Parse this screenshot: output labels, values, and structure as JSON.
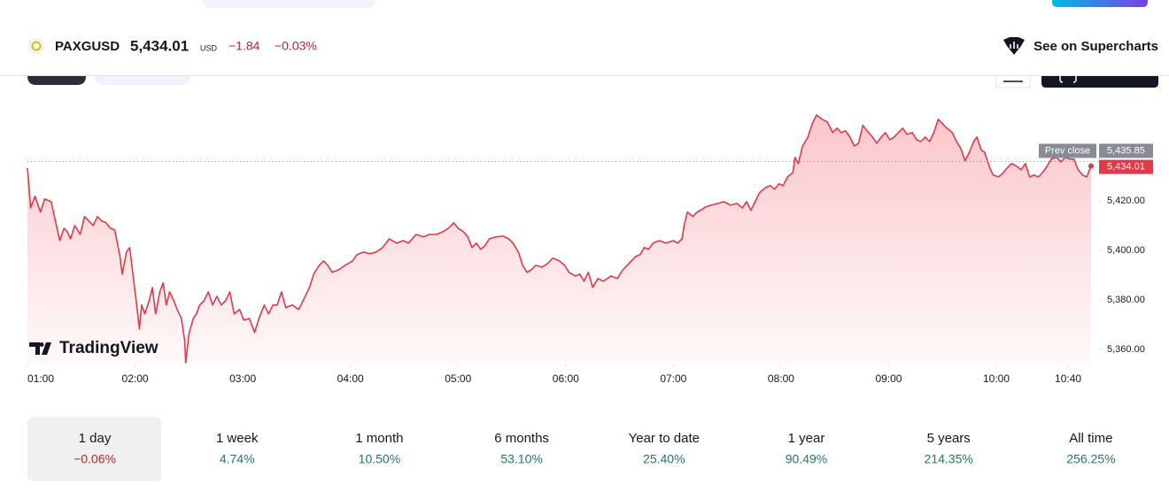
{
  "header": {
    "symbol": "PAXGUSD",
    "price": "5,434.01",
    "currency": "USD",
    "change": "−1.84",
    "change_pct": "−0.03%",
    "link": "See on Supercharts"
  },
  "watermark": "TradingView",
  "chart_data": {
    "type": "line",
    "x": [
      1.0,
      1.03,
      1.07,
      1.12,
      1.16,
      1.22,
      1.26,
      1.3,
      1.34,
      1.37,
      1.4,
      1.44,
      1.49,
      1.53,
      1.57,
      1.61,
      1.65,
      1.69,
      1.73,
      1.77,
      1.81,
      1.86,
      1.88,
      1.92,
      1.95,
      1.98,
      2.01,
      2.04,
      2.06,
      2.09,
      2.13,
      2.16,
      2.19,
      2.23,
      2.26,
      2.29,
      2.32,
      2.36,
      2.39,
      2.43,
      2.46,
      2.47,
      2.5,
      2.54,
      2.57,
      2.6,
      2.64,
      2.68,
      2.72,
      2.76,
      2.8,
      2.84,
      2.88,
      2.92,
      2.97,
      3.01,
      3.06,
      3.11,
      3.15,
      3.2,
      3.24,
      3.28,
      3.32,
      3.36,
      3.4,
      3.46,
      3.52,
      3.58,
      3.62,
      3.66,
      3.71,
      3.75,
      3.79,
      3.83,
      3.89,
      3.95,
      4.02,
      4.06,
      4.12,
      4.18,
      4.24,
      4.3,
      4.36,
      4.43,
      4.49,
      4.54,
      4.61,
      4.68,
      4.73,
      4.8,
      4.86,
      4.91,
      4.96,
      5.0,
      5.05,
      5.09,
      5.13,
      5.17,
      5.21,
      5.25,
      5.29,
      5.35,
      5.42,
      5.47,
      5.51,
      5.56,
      5.6,
      5.64,
      5.68,
      5.72,
      5.78,
      5.83,
      5.88,
      5.94,
      5.99,
      6.03,
      6.09,
      6.13,
      6.17,
      6.21,
      6.25,
      6.3,
      6.35,
      6.42,
      6.48,
      6.53,
      6.57,
      6.61,
      6.65,
      6.69,
      6.73,
      6.77,
      6.81,
      6.87,
      6.93,
      7.0,
      7.04,
      7.08,
      7.1,
      7.13,
      7.18,
      7.22,
      7.26,
      7.3,
      7.35,
      7.41,
      7.47,
      7.53,
      7.59,
      7.64,
      7.68,
      7.72,
      7.76,
      7.8,
      7.86,
      7.9,
      7.94,
      7.98,
      8.02,
      8.06,
      8.11,
      8.13,
      8.16,
      8.2,
      8.25,
      8.29,
      8.33,
      8.38,
      8.43,
      8.48,
      8.52,
      8.56,
      8.6,
      8.64,
      8.68,
      8.72,
      8.76,
      8.8,
      8.85,
      8.89,
      8.93,
      8.97,
      9.01,
      9.05,
      9.09,
      9.13,
      9.17,
      9.22,
      9.26,
      9.3,
      9.34,
      9.38,
      9.42,
      9.46,
      9.5,
      9.54,
      9.59,
      9.63,
      9.67,
      9.71,
      9.75,
      9.79,
      9.82,
      9.86,
      9.89,
      9.94,
      9.97,
      10.02,
      10.06,
      10.1,
      10.14,
      10.19,
      10.23,
      10.27,
      10.31,
      10.35,
      10.39,
      10.43,
      10.47,
      10.51,
      10.56,
      10.6,
      10.64,
      10.68,
      10.72,
      10.76,
      10.8,
      10.84,
      10.88
    ],
    "series": [
      {
        "name": "PAXGUSD",
        "color": "#e03a48",
        "values": [
          5433.2,
          5417.1,
          5421.8,
          5415.4,
          5420.7,
          5419.6,
          5411.8,
          5403.9,
          5408.9,
          5407.5,
          5404.6,
          5410,
          5406.4,
          5413.6,
          5411.8,
          5410,
          5413.6,
          5411.8,
          5411.1,
          5408.9,
          5408.2,
          5397.5,
          5390.4,
          5399.3,
          5401.1,
          5390.4,
          5379.6,
          5368.2,
          5377.9,
          5374.3,
          5379.6,
          5385,
          5374.3,
          5383.2,
          5386.8,
          5377.9,
          5383.2,
          5379.6,
          5376.1,
          5372.5,
          5363.6,
          5354.6,
          5366.1,
          5372.5,
          5374.3,
          5377.9,
          5379.6,
          5383.2,
          5377.9,
          5381.4,
          5377.9,
          5379.6,
          5383.2,
          5374.3,
          5376.1,
          5371.8,
          5372.5,
          5366.8,
          5372.5,
          5377.9,
          5374.3,
          5377.9,
          5377.9,
          5383.2,
          5376.8,
          5377.9,
          5376.1,
          5381.4,
          5385,
          5390.4,
          5393.9,
          5395.7,
          5393.9,
          5391.1,
          5392.1,
          5393.9,
          5395.7,
          5398.2,
          5399.3,
          5398.6,
          5399.3,
          5401.1,
          5404.6,
          5402.9,
          5403.9,
          5402.9,
          5406.4,
          5405.4,
          5406.4,
          5406.4,
          5407.5,
          5408.9,
          5411.1,
          5408.9,
          5407.5,
          5405.4,
          5401.1,
          5402.9,
          5400.4,
          5401.8,
          5404.6,
          5405.4,
          5405.7,
          5404.6,
          5402.9,
          5399.3,
          5393.9,
          5391.1,
          5392.1,
          5393.9,
          5393.2,
          5394.6,
          5396.8,
          5395.7,
          5393.9,
          5391.1,
          5389.6,
          5390.4,
          5387.5,
          5391.1,
          5385,
          5388.6,
          5387.5,
          5389.6,
          5388.6,
          5392.1,
          5393.9,
          5395.7,
          5397.5,
          5398.2,
          5401.1,
          5400.4,
          5402.9,
          5403.9,
          5402.9,
          5403.9,
          5402.9,
          5404.6,
          5410,
          5415.4,
          5413.6,
          5415.4,
          5416.4,
          5417.5,
          5418.2,
          5418.9,
          5419.6,
          5418.2,
          5418.9,
          5417.1,
          5419.6,
          5416.1,
          5419.6,
          5423.2,
          5425.4,
          5426.1,
          5424.6,
          5426.8,
          5426.1,
          5429.6,
          5431.4,
          5437.5,
          5435,
          5442.1,
          5445.7,
          5451.1,
          5454.6,
          5452.9,
          5451.8,
          5447.5,
          5449.3,
          5447.5,
          5448.2,
          5445.7,
          5442.1,
          5443.2,
          5450.4,
          5448.2,
          5445.7,
          5443.2,
          5445.7,
          5447.5,
          5444.6,
          5445.7,
          5447.5,
          5449.3,
          5446.8,
          5447.5,
          5444.6,
          5443.9,
          5445.7,
          5443.9,
          5447.5,
          5452.9,
          5451.1,
          5449.3,
          5447.5,
          5443.9,
          5441.1,
          5436.1,
          5439.6,
          5443.9,
          5445.7,
          5440.4,
          5439.6,
          5433.2,
          5430.4,
          5429.6,
          5431.1,
          5433.2,
          5435,
          5433.9,
          5432.5,
          5435,
          5429.6,
          5430.4,
          5429.6,
          5431.4,
          5433.9,
          5436.8,
          5437.5,
          5435.7,
          5437.5,
          5436.8,
          5436.8,
          5432.5,
          5430.4,
          5429.6,
          5434.01
        ]
      }
    ],
    "xlim": [
      1,
      10.88
    ],
    "ylim": [
      5354.6,
      5467.1
    ],
    "xticks": [
      {
        "value": 1,
        "label": "01:00"
      },
      {
        "value": 2,
        "label": "02:00"
      },
      {
        "value": 3,
        "label": "03:00"
      },
      {
        "value": 4,
        "label": "04:00"
      },
      {
        "value": 5,
        "label": "05:00"
      },
      {
        "value": 6,
        "label": "06:00"
      },
      {
        "value": 7,
        "label": "07:00"
      },
      {
        "value": 8,
        "label": "08:00"
      },
      {
        "value": 9,
        "label": "09:00"
      },
      {
        "value": 10,
        "label": "10:00"
      },
      {
        "value": 10.6667,
        "label": "10:40"
      }
    ],
    "yticks": [
      {
        "value": 5360,
        "label": "5,360.00"
      },
      {
        "value": 5380,
        "label": "5,380.00"
      },
      {
        "value": 5400,
        "label": "5,400.00"
      },
      {
        "value": 5420,
        "label": "5,420.00"
      }
    ],
    "prev_close": {
      "value": 5435.85,
      "label": "5,435.85",
      "text": "Prev close"
    },
    "last": {
      "value": 5434.01,
      "label": "5,434.01"
    }
  },
  "periods": [
    {
      "label": "1 day",
      "change": "−0.06%"
    },
    {
      "label": "1 week",
      "change": "4.74%"
    },
    {
      "label": "1 month",
      "change": "10.50%"
    },
    {
      "label": "6 months",
      "change": "53.10%"
    },
    {
      "label": "Year to date",
      "change": "25.40%"
    },
    {
      "label": "1 year",
      "change": "90.49%"
    },
    {
      "label": "5 years",
      "change": "214.35%"
    },
    {
      "label": "All time",
      "change": "256.25%"
    }
  ],
  "selected_period": 0
}
